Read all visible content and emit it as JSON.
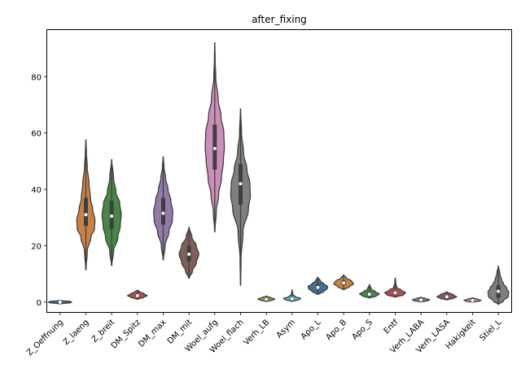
{
  "chart_data": {
    "type": "violin",
    "title": "after_fixing",
    "xlabel": "",
    "ylabel": "",
    "ylim": [
      -3.5,
      96.5
    ],
    "yticks": [
      0,
      20,
      40,
      60,
      80
    ],
    "grid": false,
    "categories": [
      "Z_Oeffnung",
      "Z_laeng",
      "Z_breit",
      "DM_Spitz",
      "DM_max",
      "DM_mit",
      "Woel_aufg",
      "Woel_flach",
      "Verh_LB",
      "Asym",
      "Apo_L",
      "Apo_B",
      "Apo_S",
      "Entf",
      "Verh_LABA",
      "Verh_LASA",
      "Hakigkeit",
      "Stiel_L"
    ],
    "colors": [
      "#3274a1",
      "#e1812c",
      "#3a923a",
      "#c03d3e",
      "#9372b2",
      "#845b53",
      "#d684bd",
      "#7f7f7f",
      "#a9aa35",
      "#2ed0de",
      "#3274a1",
      "#e1812c",
      "#3a923a",
      "#c03d3e",
      "#9372b2",
      "#845b53",
      "#d684bd",
      "#7f7f7f"
    ],
    "violins": [
      {
        "category": "Z_Oeffnung",
        "min": -0.6,
        "q1": -0.1,
        "median": 0.0,
        "q3": 0.1,
        "max": 0.6,
        "width": 0.45,
        "profile": [
          [
            -0.6,
            0.05
          ],
          [
            -0.2,
            0.9
          ],
          [
            0.0,
            1.0
          ],
          [
            0.2,
            0.9
          ],
          [
            0.6,
            0.05
          ]
        ]
      },
      {
        "category": "Z_laeng",
        "min": 11.5,
        "q1": 27,
        "median": 31,
        "q3": 37,
        "max": 57.5,
        "width": 0.35,
        "profile": [
          [
            11.5,
            0.02
          ],
          [
            18,
            0.15
          ],
          [
            23,
            0.55
          ],
          [
            26,
            0.95
          ],
          [
            29,
            1.0
          ],
          [
            33,
            0.75
          ],
          [
            37,
            0.5
          ],
          [
            42,
            0.35
          ],
          [
            48,
            0.15
          ],
          [
            53,
            0.06
          ],
          [
            57.5,
            0.01
          ]
        ]
      },
      {
        "category": "Z_breit",
        "min": 13,
        "q1": 26,
        "median": 30.5,
        "q3": 36,
        "max": 50.5,
        "width": 0.37,
        "profile": [
          [
            13,
            0.02
          ],
          [
            18,
            0.2
          ],
          [
            23,
            0.65
          ],
          [
            27,
            0.9
          ],
          [
            31,
            1.0
          ],
          [
            35,
            0.85
          ],
          [
            39,
            0.45
          ],
          [
            44,
            0.2
          ],
          [
            50.5,
            0.01
          ]
        ]
      },
      {
        "category": "DM_Spitz",
        "min": 1,
        "q1": 1.8,
        "median": 2.3,
        "q3": 2.8,
        "max": 4.2,
        "width": 0.38,
        "profile": [
          [
            1,
            0.05
          ],
          [
            1.8,
            0.7
          ],
          [
            2.3,
            1.0
          ],
          [
            2.9,
            0.7
          ],
          [
            3.6,
            0.3
          ],
          [
            4.2,
            0.03
          ]
        ]
      },
      {
        "category": "DM_max",
        "min": 15,
        "q1": 27.5,
        "median": 31.5,
        "q3": 37,
        "max": 51.5,
        "width": 0.37,
        "profile": [
          [
            15,
            0.02
          ],
          [
            20,
            0.2
          ],
          [
            25,
            0.6
          ],
          [
            29,
            0.95
          ],
          [
            32,
            1.0
          ],
          [
            36,
            0.8
          ],
          [
            40,
            0.5
          ],
          [
            44,
            0.25
          ],
          [
            48,
            0.08
          ],
          [
            51.5,
            0.01
          ]
        ]
      },
      {
        "category": "DM_mit",
        "min": 8.5,
        "q1": 14.5,
        "median": 17,
        "q3": 20,
        "max": 26.5,
        "width": 0.38,
        "profile": [
          [
            8.5,
            0.03
          ],
          [
            11,
            0.35
          ],
          [
            14,
            0.75
          ],
          [
            17,
            1.0
          ],
          [
            20,
            0.75
          ],
          [
            23,
            0.3
          ],
          [
            26.5,
            0.02
          ]
        ]
      },
      {
        "category": "Woel_aufg",
        "min": 25,
        "q1": 47,
        "median": 54.5,
        "q3": 63,
        "max": 92,
        "width": 0.37,
        "profile": [
          [
            25,
            0.02
          ],
          [
            32,
            0.15
          ],
          [
            38,
            0.4
          ],
          [
            44,
            0.7
          ],
          [
            50,
            0.9
          ],
          [
            55,
            1.0
          ],
          [
            60,
            0.95
          ],
          [
            66,
            0.65
          ],
          [
            72,
            0.35
          ],
          [
            80,
            0.1
          ],
          [
            86,
            0.04
          ],
          [
            92,
            0.01
          ]
        ]
      },
      {
        "category": "Woel_flach",
        "min": 6,
        "q1": 34.5,
        "median": 42,
        "q3": 49,
        "max": 68.5,
        "width": 0.38,
        "profile": [
          [
            6,
            0.01
          ],
          [
            15,
            0.05
          ],
          [
            25,
            0.25
          ],
          [
            33,
            0.8
          ],
          [
            38,
            1.0
          ],
          [
            42,
            0.95
          ],
          [
            47,
            0.65
          ],
          [
            53,
            0.3
          ],
          [
            60,
            0.1
          ],
          [
            68.5,
            0.01
          ]
        ]
      },
      {
        "category": "Verh_LB",
        "min": 0.2,
        "q1": 0.8,
        "median": 1.0,
        "q3": 1.3,
        "max": 2.1,
        "width": 0.33,
        "profile": [
          [
            0.2,
            0.05
          ],
          [
            0.8,
            0.8
          ],
          [
            1.1,
            1.0
          ],
          [
            1.5,
            0.6
          ],
          [
            2.1,
            0.05
          ]
        ]
      },
      {
        "category": "Asym",
        "min": 0.3,
        "q1": 0.9,
        "median": 1.2,
        "q3": 1.5,
        "max": 4.3,
        "width": 0.33,
        "profile": [
          [
            0.3,
            0.1
          ],
          [
            0.9,
            0.8
          ],
          [
            1.3,
            1.0
          ],
          [
            1.9,
            0.4
          ],
          [
            2.6,
            0.12
          ],
          [
            3.4,
            0.05
          ],
          [
            4.3,
            0.01
          ]
        ]
      },
      {
        "category": "Apo_L",
        "min": 2.8,
        "q1": 4.5,
        "median": 5.2,
        "q3": 6.2,
        "max": 8.8,
        "width": 0.38,
        "profile": [
          [
            2.8,
            0.1
          ],
          [
            3.8,
            0.6
          ],
          [
            4.8,
            0.95
          ],
          [
            5.5,
            1.0
          ],
          [
            6.5,
            0.6
          ],
          [
            7.5,
            0.25
          ],
          [
            8.8,
            0.02
          ]
        ]
      },
      {
        "category": "Apo_B",
        "min": 4.5,
        "q1": 6.0,
        "median": 6.8,
        "q3": 7.6,
        "max": 9.6,
        "width": 0.38,
        "profile": [
          [
            4.5,
            0.1
          ],
          [
            5.5,
            0.6
          ],
          [
            6.5,
            1.0
          ],
          [
            7.5,
            0.8
          ],
          [
            8.5,
            0.3
          ],
          [
            9.6,
            0.02
          ]
        ]
      },
      {
        "category": "Apo_S",
        "min": 1.5,
        "q1": 2.3,
        "median": 2.8,
        "q3": 3.5,
        "max": 6.2,
        "width": 0.38,
        "profile": [
          [
            1.5,
            0.1
          ],
          [
            2.2,
            0.7
          ],
          [
            2.9,
            1.0
          ],
          [
            3.7,
            0.6
          ],
          [
            4.6,
            0.2
          ],
          [
            6.2,
            0.02
          ]
        ]
      },
      {
        "category": "Entf",
        "min": 1.8,
        "q1": 2.6,
        "median": 3.3,
        "q3": 3.9,
        "max": 8.5,
        "width": 0.4,
        "profile": [
          [
            1.8,
            0.1
          ],
          [
            2.6,
            0.8
          ],
          [
            3.3,
            1.0
          ],
          [
            4.2,
            0.6
          ],
          [
            5.2,
            0.15
          ],
          [
            6.8,
            0.05
          ],
          [
            8.5,
            0.01
          ]
        ]
      },
      {
        "category": "Verh_LABA",
        "min": 0.1,
        "q1": 0.55,
        "median": 0.8,
        "q3": 1.05,
        "max": 1.7,
        "width": 0.33,
        "profile": [
          [
            0.1,
            0.05
          ],
          [
            0.5,
            0.8
          ],
          [
            0.85,
            1.0
          ],
          [
            1.2,
            0.6
          ],
          [
            1.7,
            0.05
          ]
        ]
      },
      {
        "category": "Verh_LASA",
        "min": 0.8,
        "q1": 1.4,
        "median": 1.9,
        "q3": 2.4,
        "max": 3.6,
        "width": 0.38,
        "profile": [
          [
            0.8,
            0.05
          ],
          [
            1.4,
            0.7
          ],
          [
            1.9,
            1.0
          ],
          [
            2.5,
            0.7
          ],
          [
            3.6,
            0.05
          ]
        ]
      },
      {
        "category": "Hakigkeit",
        "min": 0.0,
        "q1": 0.4,
        "median": 0.6,
        "q3": 0.8,
        "max": 1.5,
        "width": 0.33,
        "profile": [
          [
            0.0,
            0.05
          ],
          [
            0.4,
            0.8
          ],
          [
            0.65,
            1.0
          ],
          [
            1.0,
            0.6
          ],
          [
            1.5,
            0.05
          ]
        ]
      },
      {
        "category": "Stiel_L",
        "min": -0.8,
        "q1": 1.5,
        "median": 3.8,
        "q3": 6.0,
        "max": 12.7,
        "width": 0.4,
        "profile": [
          [
            -0.8,
            0.03
          ],
          [
            0.5,
            0.5
          ],
          [
            2,
            0.95
          ],
          [
            3.5,
            1.0
          ],
          [
            5,
            0.8
          ],
          [
            6.5,
            0.5
          ],
          [
            8,
            0.3
          ],
          [
            10,
            0.15
          ],
          [
            12.7,
            0.02
          ]
        ]
      }
    ]
  }
}
